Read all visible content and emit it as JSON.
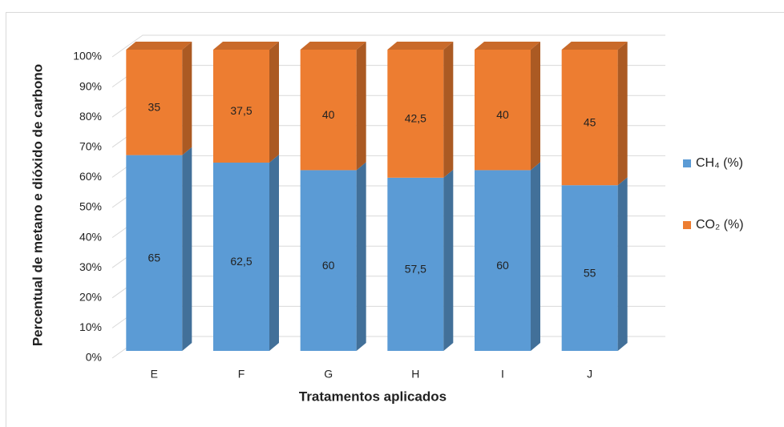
{
  "chart_data": {
    "type": "stacked-bar-3d",
    "x_label": "Tratamentos aplicados",
    "y_label": "Percentual de metano e dióxido de carbono",
    "categories": [
      "E",
      "F",
      "G",
      "H",
      "I",
      "J"
    ],
    "series": [
      {
        "name": "CH₄ (%)",
        "color": "#5b9bd5",
        "values": [
          65,
          62.5,
          60,
          57.5,
          60,
          55
        ],
        "value_labels": [
          "65",
          "62,5",
          "60",
          "57,5",
          "60",
          "55"
        ]
      },
      {
        "name": "CO₂ (%)",
        "color": "#ed7d31",
        "values": [
          35,
          37.5,
          40,
          42.5,
          40,
          45
        ],
        "value_labels": [
          "35",
          "37,5",
          "40",
          "42,5",
          "40",
          "45"
        ]
      }
    ],
    "ylim": [
      0,
      100
    ],
    "yticks": [
      {
        "value": 0,
        "label": "0%"
      },
      {
        "value": 10,
        "label": "10%"
      },
      {
        "value": 20,
        "label": "20%"
      },
      {
        "value": 30,
        "label": "30%"
      },
      {
        "value": 40,
        "label": "40%"
      },
      {
        "value": 50,
        "label": "50%"
      },
      {
        "value": 60,
        "label": "60%"
      },
      {
        "value": 70,
        "label": "70%"
      },
      {
        "value": 80,
        "label": "80%"
      },
      {
        "value": 90,
        "label": "90%"
      },
      {
        "value": 100,
        "label": "100%"
      }
    ],
    "grid": true,
    "legend": "right"
  }
}
